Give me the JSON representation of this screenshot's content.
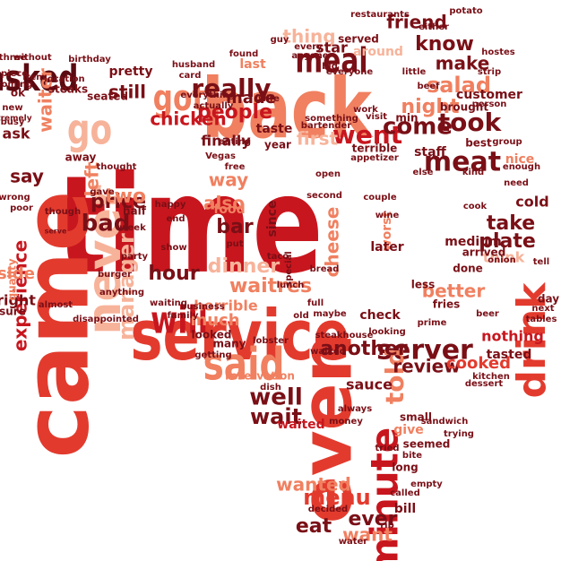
{
  "word_cloud": {
    "palette": {
      "dark_red": "#7a0f16",
      "red": "#c8161e",
      "bright_red": "#e23b2e",
      "salmon": "#f08060",
      "light_salmon": "#f7b39a",
      "pale": "#f9c7b0"
    },
    "words": [
      {
        "text": "time",
        "color": "#c8161e"
      },
      {
        "text": "service",
        "color": "#e23b2e"
      },
      {
        "text": "back",
        "color": "#f08060"
      },
      {
        "text": "came",
        "color": "#e23b2e"
      },
      {
        "text": "even",
        "color": "#e23b2e"
      },
      {
        "text": "asked",
        "color": "#5a0a10"
      },
      {
        "text": "go",
        "color": "#f7b39a"
      },
      {
        "text": "never",
        "color": "#f7b39a"
      },
      {
        "text": "said",
        "color": "#f08060"
      },
      {
        "text": "will",
        "color": "#c8161e"
      },
      {
        "text": "minute",
        "color": "#c8161e"
      },
      {
        "text": "drink",
        "color": "#e23b2e"
      },
      {
        "text": "meal",
        "color": "#7a0f16"
      },
      {
        "text": "got",
        "color": "#f08060"
      },
      {
        "text": "server",
        "color": "#7a0f16"
      },
      {
        "text": "really",
        "color": "#7a0f16"
      },
      {
        "text": "went",
        "color": "#c8161e"
      },
      {
        "text": "come",
        "color": "#7a0f16"
      },
      {
        "text": "took",
        "color": "#7a0f16"
      },
      {
        "text": "meat",
        "color": "#7a0f16"
      },
      {
        "text": "well",
        "color": "#7a0f16"
      },
      {
        "text": "wait",
        "color": "#7a0f16"
      },
      {
        "text": "told",
        "color": "#f08060"
      },
      {
        "text": "another",
        "color": "#7a0f16"
      },
      {
        "text": "manager",
        "color": "#f7b39a"
      },
      {
        "text": "bad",
        "color": "#7a0f16"
      },
      {
        "text": "people",
        "color": "#c8161e"
      },
      {
        "text": "chicken",
        "color": "#c8161e"
      },
      {
        "text": "hour",
        "color": "#7a0f16"
      },
      {
        "text": "dinner",
        "color": "#f7b39a"
      },
      {
        "text": "waitres",
        "color": "#f08060"
      },
      {
        "text": "thing",
        "color": "#f7b39a"
      },
      {
        "text": "know",
        "color": "#7a0f16"
      },
      {
        "text": "friend",
        "color": "#7a0f16"
      },
      {
        "text": "make",
        "color": "#7a0f16"
      },
      {
        "text": "salad",
        "color": "#f08060"
      },
      {
        "text": "night",
        "color": "#f08060"
      },
      {
        "text": "plate",
        "color": "#7a0f16"
      },
      {
        "text": "take",
        "color": "#7a0f16"
      },
      {
        "text": "cheese",
        "color": "#f08060"
      },
      {
        "text": "experience",
        "color": "#c8161e"
      },
      {
        "text": "menu",
        "color": "#e23b2e"
      },
      {
        "text": "eat",
        "color": "#7a0f16"
      },
      {
        "text": "ever",
        "color": "#7a0f16"
      },
      {
        "text": "want",
        "color": "#f08060"
      },
      {
        "text": "wanted",
        "color": "#f08060"
      },
      {
        "text": "review",
        "color": "#7a0f16"
      },
      {
        "text": "cooked",
        "color": "#e23b2e"
      },
      {
        "text": "still",
        "color": "#7a0f16"
      },
      {
        "text": "say",
        "color": "#7a0f16"
      },
      {
        "text": "price",
        "color": "#7a0f16"
      },
      {
        "text": "two",
        "color": "#f08060"
      },
      {
        "text": "way",
        "color": "#f08060"
      },
      {
        "text": "also",
        "color": "#f08060"
      },
      {
        "text": "bar",
        "color": "#7a0f16"
      },
      {
        "text": "first",
        "color": "#f7b39a"
      },
      {
        "text": "better",
        "color": "#f08060"
      },
      {
        "text": "nothing",
        "color": "#c8161e"
      },
      {
        "text": "waiter",
        "color": "#f08060"
      },
      {
        "text": "left",
        "color": "#f08060"
      },
      {
        "text": "finally",
        "color": "#7a0f16"
      },
      {
        "text": "made",
        "color": "#7a0f16"
      },
      {
        "text": "much",
        "color": "#f08060"
      },
      {
        "text": "right",
        "color": "#7a0f16"
      },
      {
        "text": "side",
        "color": "#f08060"
      },
      {
        "text": "ask",
        "color": "#7a0f16"
      },
      {
        "text": "horrible",
        "color": "#f08060"
      },
      {
        "text": "tasted",
        "color": "#7a0f16"
      },
      {
        "text": "sauce",
        "color": "#7a0f16"
      },
      {
        "text": "waited",
        "color": "#c8161e"
      },
      {
        "text": "think",
        "color": "#f7b39a"
      },
      {
        "text": "nice",
        "color": "#f08060"
      },
      {
        "text": "cold",
        "color": "#7a0f16"
      },
      {
        "text": "check",
        "color": "#7a0f16"
      },
      {
        "text": "worst",
        "color": "#f08060"
      },
      {
        "text": "medium",
        "color": "#7a0f16"
      },
      {
        "text": "bill",
        "color": "#7a0f16"
      },
      {
        "text": "give",
        "color": "#f08060"
      },
      {
        "text": "food",
        "color": "#f08060"
      },
      {
        "text": "last",
        "color": "#f08060"
      },
      {
        "text": "star",
        "color": "#7a0f16"
      },
      {
        "text": "around",
        "color": "#f7b39a"
      },
      {
        "text": "pretty",
        "color": "#7a0f16"
      },
      {
        "text": "seated",
        "color": "#7a0f16"
      },
      {
        "text": "steaks",
        "color": "#7a0f16"
      },
      {
        "text": "location",
        "color": "#7a0f16"
      },
      {
        "text": "brought",
        "color": "#7a0f16"
      },
      {
        "text": "customer",
        "color": "#7a0f16"
      },
      {
        "text": "best",
        "color": "#7a0f16"
      },
      {
        "text": "quality",
        "color": "#f08060"
      },
      {
        "text": "sure",
        "color": "#7a0f16"
      },
      {
        "text": "almost",
        "color": "#7a0f16"
      },
      {
        "text": "disappointed",
        "color": "#7a0f16"
      },
      {
        "text": "anything",
        "color": "#7a0f16"
      },
      {
        "text": "looked",
        "color": "#7a0f16"
      },
      {
        "text": "many",
        "color": "#7a0f16"
      },
      {
        "text": "getting",
        "color": "#7a0f16"
      },
      {
        "text": "reservation",
        "color": "#f08060"
      },
      {
        "text": "steakhouse",
        "color": "#7a0f16"
      },
      {
        "text": "walked",
        "color": "#7a0f16"
      },
      {
        "text": "maybe",
        "color": "#7a0f16"
      },
      {
        "text": "fries",
        "color": "#7a0f16"
      },
      {
        "text": "less",
        "color": "#7a0f16"
      },
      {
        "text": "taste",
        "color": "#7a0f16"
      },
      {
        "text": "since",
        "color": "#7a0f16"
      },
      {
        "text": "staff",
        "color": "#7a0f16"
      },
      {
        "text": "later",
        "color": "#7a0f16"
      },
      {
        "text": "served",
        "color": "#7a0f16"
      },
      {
        "text": "lunch",
        "color": "#7a0f16"
      },
      {
        "text": "full",
        "color": "#7a0f16"
      },
      {
        "text": "potato",
        "color": "#7a0f16"
      },
      {
        "text": "couple",
        "color": "#7a0f16"
      },
      {
        "text": "terrible",
        "color": "#7a0f16"
      },
      {
        "text": "small",
        "color": "#7a0f16"
      },
      {
        "text": "tried",
        "color": "#7a0f16"
      },
      {
        "text": "long",
        "color": "#7a0f16"
      },
      {
        "text": "away",
        "color": "#7a0f16"
      },
      {
        "text": "thought",
        "color": "#7a0f16"
      },
      {
        "text": "half",
        "color": "#7a0f16"
      },
      {
        "text": "busy",
        "color": "#7a0f16"
      },
      {
        "text": "three",
        "color": "#7a0f16"
      },
      {
        "text": "without",
        "color": "#7a0f16"
      },
      {
        "text": "piece",
        "color": "#7a0f16"
      },
      {
        "text": "ok",
        "color": "#7a0f16"
      },
      {
        "text": "new",
        "color": "#7a0f16"
      },
      {
        "text": "extremely",
        "color": "#7a0f16"
      },
      {
        "text": "wrong",
        "color": "#7a0f16"
      },
      {
        "text": "poor",
        "color": "#7a0f16"
      },
      {
        "text": "though",
        "color": "#7a0f16"
      },
      {
        "text": "serve",
        "color": "#7a0f16"
      },
      {
        "text": "gave",
        "color": "#7a0f16"
      },
      {
        "text": "week",
        "color": "#7a0f16"
      },
      {
        "text": "party",
        "color": "#7a0f16"
      },
      {
        "text": "burger",
        "color": "#7a0f16"
      },
      {
        "text": "husband",
        "color": "#7a0f16"
      },
      {
        "text": "card",
        "color": "#7a0f16"
      },
      {
        "text": "everything",
        "color": "#7a0f16"
      },
      {
        "text": "actually",
        "color": "#7a0f16"
      },
      {
        "text": "eating",
        "color": "#7a0f16"
      },
      {
        "text": "Vegas",
        "color": "#7a0f16"
      },
      {
        "text": "free",
        "color": "#7a0f16"
      },
      {
        "text": "happy",
        "color": "#7a0f16"
      },
      {
        "text": "end",
        "color": "#7a0f16"
      },
      {
        "text": "show",
        "color": "#7a0f16"
      },
      {
        "text": "put",
        "color": "#7a0f16"
      },
      {
        "text": "waiting",
        "color": "#7a0f16"
      },
      {
        "text": "business",
        "color": "#7a0f16"
      },
      {
        "text": "family",
        "color": "#7a0f16"
      },
      {
        "text": "old",
        "color": "#7a0f16"
      },
      {
        "text": "bread",
        "color": "#7a0f16"
      },
      {
        "text": "taco",
        "color": "#7a0f16"
      },
      {
        "text": "special",
        "color": "#7a0f16"
      },
      {
        "text": "year",
        "color": "#7a0f16"
      },
      {
        "text": "open",
        "color": "#7a0f16"
      },
      {
        "text": "second",
        "color": "#7a0f16"
      },
      {
        "text": "wine",
        "color": "#7a0f16"
      },
      {
        "text": "kind",
        "color": "#7a0f16"
      },
      {
        "text": "need",
        "color": "#7a0f16"
      },
      {
        "text": "enough",
        "color": "#7a0f16"
      },
      {
        "text": "arrived",
        "color": "#7a0f16"
      },
      {
        "text": "onion",
        "color": "#7a0f16"
      },
      {
        "text": "tell",
        "color": "#7a0f16"
      },
      {
        "text": "next",
        "color": "#7a0f16"
      },
      {
        "text": "day",
        "color": "#7a0f16"
      },
      {
        "text": "tables",
        "color": "#7a0f16"
      },
      {
        "text": "done",
        "color": "#7a0f16"
      },
      {
        "text": "beer",
        "color": "#7a0f16"
      },
      {
        "text": "kitchen",
        "color": "#7a0f16"
      },
      {
        "text": "dessert",
        "color": "#7a0f16"
      },
      {
        "text": "sandwich",
        "color": "#7a0f16"
      },
      {
        "text": "seemed",
        "color": "#7a0f16"
      },
      {
        "text": "empty",
        "color": "#7a0f16"
      },
      {
        "text": "called",
        "color": "#7a0f16"
      },
      {
        "text": "decided",
        "color": "#7a0f16"
      },
      {
        "text": "water",
        "color": "#7a0f16"
      },
      {
        "text": "rib",
        "color": "#7a0f16"
      },
      {
        "text": "bite",
        "color": "#7a0f16"
      },
      {
        "text": "always",
        "color": "#7a0f16"
      },
      {
        "text": "money",
        "color": "#7a0f16"
      },
      {
        "text": "dish",
        "color": "#7a0f16"
      },
      {
        "text": "restaurants",
        "color": "#7a0f16"
      },
      {
        "text": "beef",
        "color": "#7a0f16"
      },
      {
        "text": "strip",
        "color": "#7a0f16"
      },
      {
        "text": "little",
        "color": "#7a0f16"
      },
      {
        "text": "bartender",
        "color": "#7a0f16"
      },
      {
        "text": "appetizer",
        "color": "#7a0f16"
      },
      {
        "text": "work",
        "color": "#7a0f16"
      },
      {
        "text": "visit",
        "color": "#7a0f16"
      },
      {
        "text": "group",
        "color": "#7a0f16"
      },
      {
        "text": "cook",
        "color": "#7a0f16"
      },
      {
        "text": "person",
        "color": "#7a0f16"
      },
      {
        "text": "guy",
        "color": "#7a0f16"
      },
      {
        "text": "big",
        "color": "#7a0f16"
      },
      {
        "text": "something",
        "color": "#7a0f16"
      },
      {
        "text": "every",
        "color": "#7a0f16"
      },
      {
        "text": "anyone",
        "color": "#7a0f16"
      },
      {
        "text": "everyone",
        "color": "#7a0f16"
      },
      {
        "text": "item",
        "color": "#7a0f16"
      },
      {
        "text": "coming",
        "color": "#7a0f16"
      },
      {
        "text": "looking",
        "color": "#7a0f16"
      },
      {
        "text": "lobster",
        "color": "#7a0f16"
      },
      {
        "text": "wife",
        "color": "#7a0f16"
      },
      {
        "text": "hostes",
        "color": "#7a0f16"
      },
      {
        "text": "trying",
        "color": "#7a0f16"
      },
      {
        "text": "either",
        "color": "#7a0f16"
      },
      {
        "text": "else",
        "color": "#7a0f16"
      },
      {
        "text": "min",
        "color": "#7a0f16"
      },
      {
        "text": "prime",
        "color": "#7a0f16"
      },
      {
        "text": "birthday",
        "color": "#7a0f16"
      },
      {
        "text": "found",
        "color": "#7a0f16"
      }
    ]
  }
}
